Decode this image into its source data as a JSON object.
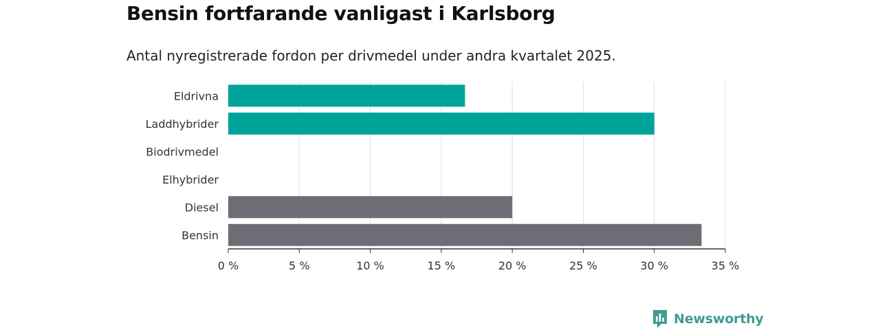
{
  "title": "Bensin fortfarande vanligast i Karlsborg",
  "subtitle": "Antal nyregistrerade fordon per drivmedel under andra kvartalet 2025.",
  "logo": {
    "text": "Newsworthy",
    "icon": "newsworthy-chart-icon",
    "color": "#3e9c93"
  },
  "colors": {
    "electric": "#00a39a",
    "fossil": "#6e6d75",
    "grid": "#dddddd",
    "axis": "#333333"
  },
  "chart_data": {
    "type": "bar",
    "orientation": "horizontal",
    "categories": [
      "Eldrivna",
      "Laddhybrider",
      "Biodrivmedel",
      "Elhybrider",
      "Diesel",
      "Bensin"
    ],
    "values": [
      16.67,
      30.0,
      0,
      0,
      20.0,
      33.33
    ],
    "bar_colors": [
      "#00a39a",
      "#00a39a",
      "#00a39a",
      "#00a39a",
      "#6e6d75",
      "#6e6d75"
    ],
    "xlim": [
      0,
      35
    ],
    "xticks": [
      0,
      5,
      10,
      15,
      20,
      25,
      30,
      35
    ],
    "xtick_labels": [
      "0 %",
      "5 %",
      "10 %",
      "15 %",
      "20 %",
      "25 %",
      "30 %",
      "35 %"
    ],
    "grid": true
  }
}
